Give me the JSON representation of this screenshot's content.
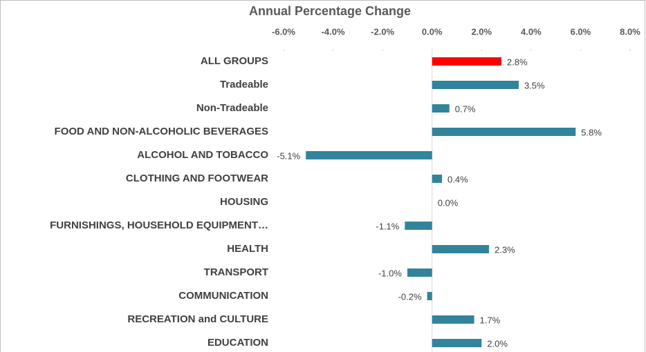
{
  "chart_data": {
    "type": "barh",
    "title": "Annual Percentage Change",
    "categories": [
      "ALL GROUPS",
      "Tradeable",
      "Non-Tradeable",
      "FOOD AND NON-ALCOHOLIC BEVERAGES",
      "ALCOHOL AND TOBACCO",
      "CLOTHING AND FOOTWEAR",
      "HOUSING",
      "FURNISHINGS, HOUSEHOLD EQUIPMENT…",
      "HEALTH",
      "TRANSPORT",
      "COMMUNICATION",
      "RECREATION and CULTURE",
      "EDUCATION"
    ],
    "values": [
      2.8,
      3.5,
      0.7,
      5.8,
      -5.1,
      0.4,
      0.0,
      -1.1,
      2.3,
      -1.0,
      -0.2,
      1.7,
      2.0
    ],
    "value_labels": [
      "2.8%",
      "3.5%",
      "0.7%",
      "5.8%",
      "-5.1%",
      "0.4%",
      "0.0%",
      "-1.1%",
      "2.3%",
      "-1.0%",
      "-0.2%",
      "1.7%",
      "2.0%"
    ],
    "colors": [
      "#ff0000",
      "#31849b",
      "#31849b",
      "#31849b",
      "#31849b",
      "#31849b",
      "#31849b",
      "#31849b",
      "#31849b",
      "#31849b",
      "#31849b",
      "#31849b",
      "#31849b"
    ],
    "xlim": [
      -6,
      8
    ],
    "xticks": [
      {
        "value": -6,
        "label": "-6.0%"
      },
      {
        "value": -4,
        "label": "-4.0%"
      },
      {
        "value": -2,
        "label": "-2.0%"
      },
      {
        "value": 0,
        "label": "0.0%"
      },
      {
        "value": 2,
        "label": "2.0%"
      },
      {
        "value": 4,
        "label": "4.0%"
      },
      {
        "value": 6,
        "label": "6.0%"
      },
      {
        "value": 8,
        "label": "8.0%"
      }
    ],
    "grid": false
  }
}
